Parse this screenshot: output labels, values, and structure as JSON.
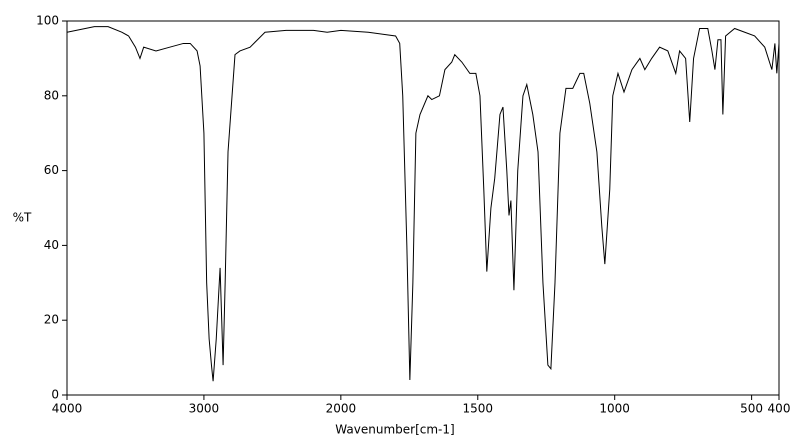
{
  "chart_data": {
    "type": "line",
    "xlabel": "Wavenumber[cm-1]",
    "ylabel": "%T",
    "xlim": [
      4000,
      400
    ],
    "ylim": [
      0,
      100
    ],
    "xticks": [
      4000,
      3000,
      2000,
      1500,
      1000,
      500,
      400
    ],
    "yticks": [
      0,
      20,
      40,
      60,
      80,
      100
    ],
    "xscale": {
      "break": 2000,
      "ratio": 2
    },
    "series": [
      {
        "color": "#000000",
        "x": [
          4000,
          3800,
          3700,
          3600,
          3550,
          3500,
          3467,
          3440,
          3350,
          3250,
          3150,
          3100,
          3050,
          3028,
          3000,
          2980,
          2962,
          2945,
          2933,
          2910,
          2882,
          2870,
          2860,
          2845,
          2824,
          2773,
          2737,
          2663,
          2554,
          2400,
          2200,
          2100,
          2000,
          1900,
          1800,
          1785,
          1774,
          1759,
          1748,
          1737,
          1726,
          1711,
          1682,
          1668,
          1640,
          1620,
          1595,
          1584,
          1558,
          1529,
          1507,
          1492,
          1478,
          1467,
          1452,
          1438,
          1419,
          1408,
          1394,
          1386,
          1379,
          1368,
          1354,
          1335,
          1321,
          1299,
          1280,
          1262,
          1244,
          1233,
          1218,
          1200,
          1178,
          1153,
          1127,
          1113,
          1091,
          1065,
          1047,
          1036,
          1018,
          1007,
          988,
          966,
          937,
          908,
          890,
          865,
          836,
          806,
          777,
          763,
          741,
          726,
          712,
          690,
          660,
          645,
          634,
          623,
          612,
          605,
          595,
          562,
          525,
          489,
          452,
          426,
          415,
          408,
          400
        ],
        "values": [
          97,
          98.5,
          98.5,
          97,
          96,
          93,
          90,
          93,
          92,
          93,
          94,
          94,
          92,
          88,
          70,
          30,
          15,
          8,
          3.7,
          15,
          34,
          20,
          8,
          30,
          65,
          91,
          92,
          93,
          97,
          97.5,
          97.5,
          97,
          97.5,
          97,
          96,
          94,
          80,
          40,
          4,
          30,
          70,
          75,
          80,
          79,
          80,
          87,
          89,
          91,
          89,
          86,
          86,
          80,
          55,
          33,
          50,
          58,
          75,
          77,
          60,
          48,
          52,
          28,
          60,
          80,
          83,
          75,
          65,
          30,
          8,
          7,
          30,
          70,
          82,
          82,
          86,
          86,
          78,
          65,
          45,
          35,
          55,
          80,
          86,
          81,
          87,
          90,
          87,
          90,
          93,
          92,
          86,
          92,
          90,
          73,
          90,
          98,
          98,
          92,
          87,
          95,
          95,
          75,
          96,
          98,
          97,
          96,
          93,
          87,
          94,
          86,
          94
        ]
      }
    ]
  }
}
